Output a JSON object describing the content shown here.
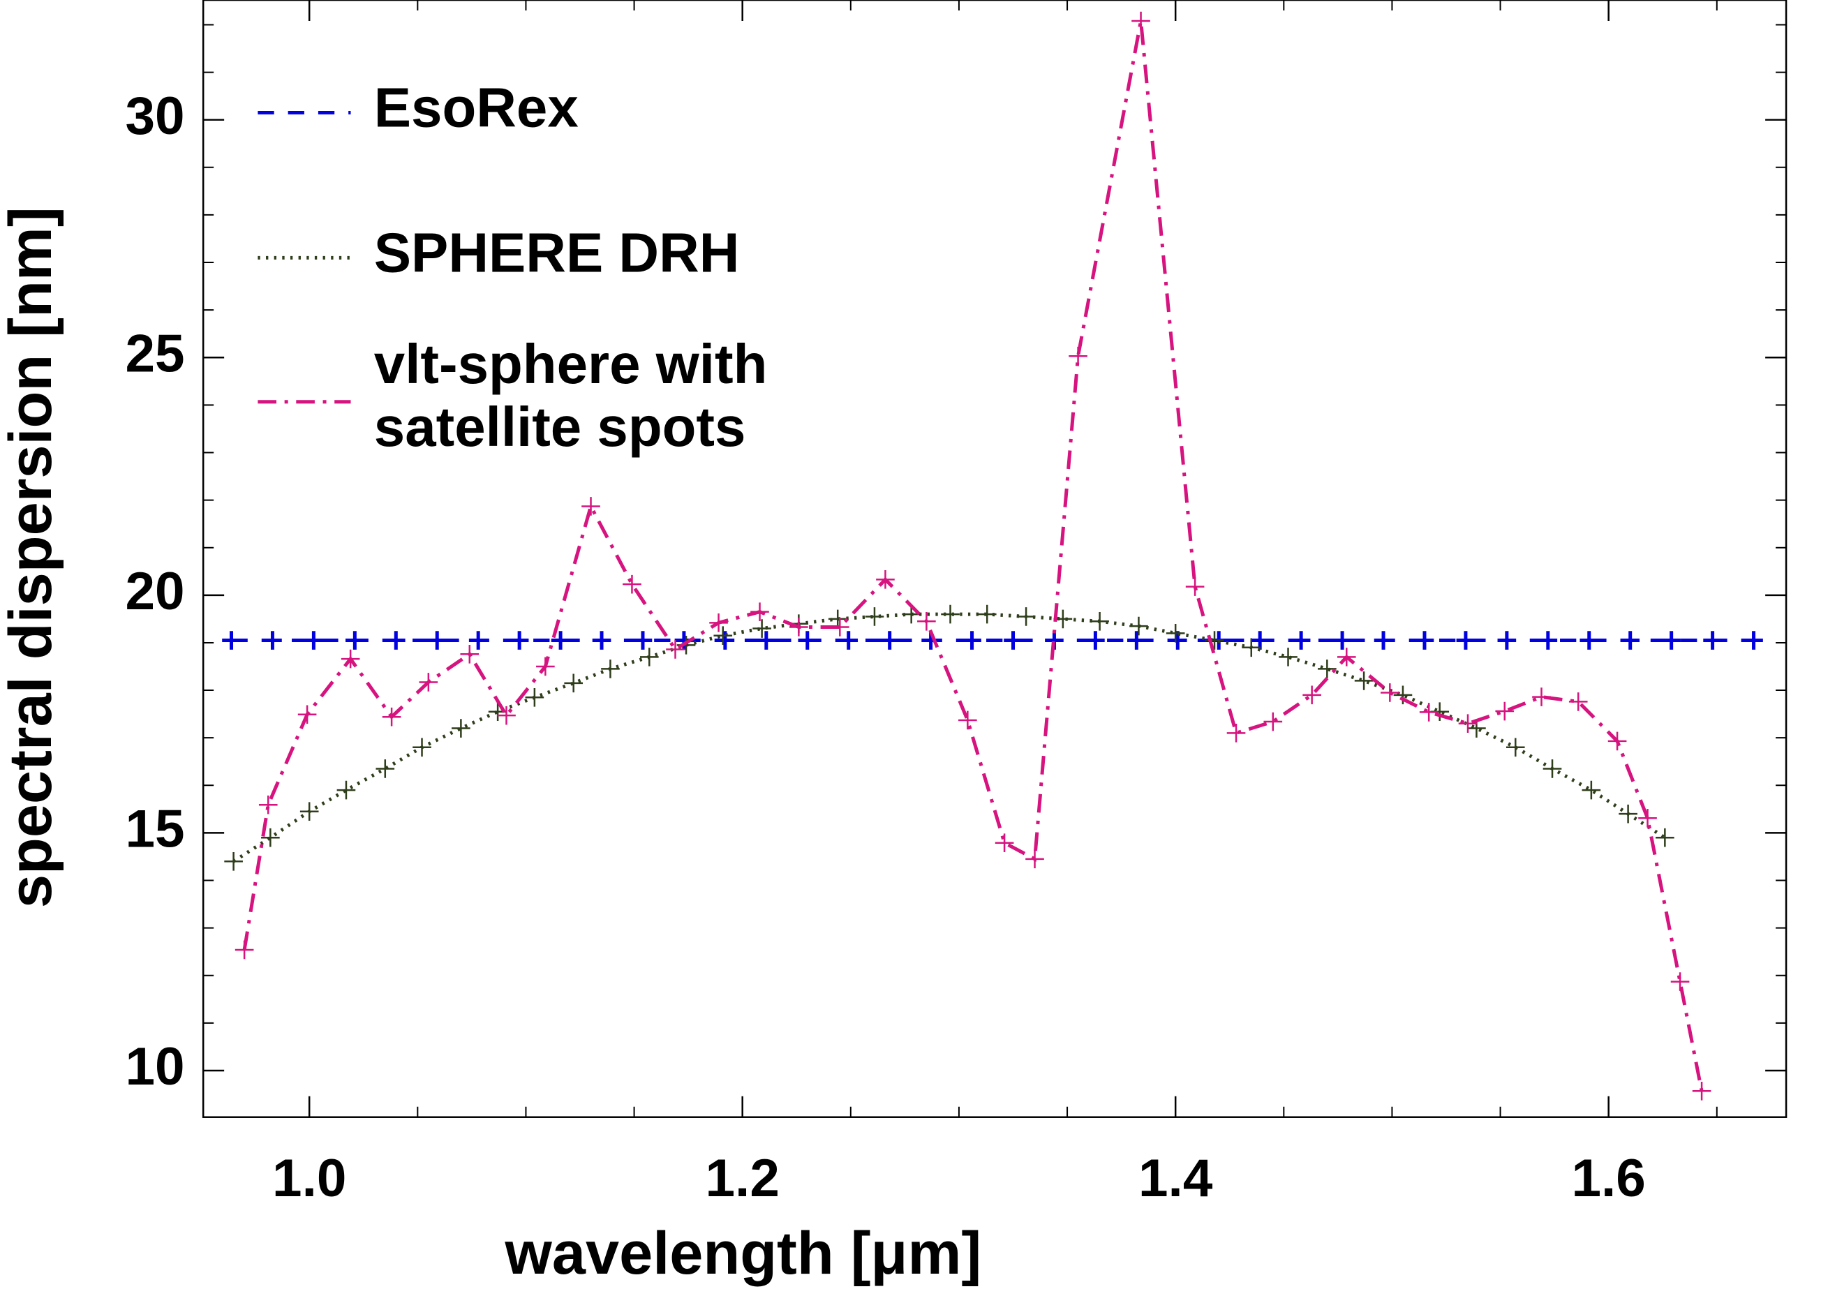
{
  "chart_data": {
    "type": "line",
    "xlabel": "wavelength [μm]",
    "ylabel": "spectral dispersion [nm]",
    "xlim": [
      0.951,
      1.682
    ],
    "ylim": [
      9.02,
      32.52
    ],
    "xticks": [
      {
        "value": 1,
        "label": "1.0"
      },
      1.2,
      1.4,
      1.6
    ],
    "yticks": [
      10,
      15,
      20,
      25,
      30
    ],
    "xminorticks": [
      1.05,
      1.1,
      1.15,
      1.25,
      1.3,
      1.35,
      1.45,
      1.5,
      1.55,
      1.65
    ],
    "yminorticks": [
      11,
      12,
      13,
      14,
      16,
      17,
      18,
      19,
      21,
      22,
      23,
      24,
      26,
      27,
      28,
      29,
      31,
      32
    ],
    "series": [
      {
        "name": "EsoRex",
        "color": "#0000e0",
        "linestyle": "dashed",
        "x": [
          0.964,
          0.983,
          1.002,
          1.021,
          1.04,
          1.059,
          1.078,
          1.097,
          1.116,
          1.135,
          1.154,
          1.173,
          1.192,
          1.211,
          1.23,
          1.249,
          1.268,
          1.287,
          1.306,
          1.325,
          1.344,
          1.363,
          1.382,
          1.401,
          1.42,
          1.439,
          1.458,
          1.477,
          1.496,
          1.515,
          1.534,
          1.553,
          1.572,
          1.591,
          1.61,
          1.629,
          1.648,
          1.667
        ],
        "values": [
          19.05,
          19.05,
          19.05,
          19.05,
          19.05,
          19.05,
          19.05,
          19.05,
          19.05,
          19.05,
          19.05,
          19.05,
          19.05,
          19.05,
          19.05,
          19.05,
          19.05,
          19.05,
          19.05,
          19.05,
          19.05,
          19.05,
          19.05,
          19.05,
          19.05,
          19.05,
          19.05,
          19.05,
          19.05,
          19.05,
          19.05,
          19.05,
          19.05,
          19.05,
          19.05,
          19.05,
          19.05,
          19.05
        ]
      },
      {
        "name": "SPHERE DRH",
        "color": "#2e3d1a",
        "linestyle": "dotted",
        "x": [
          0.965,
          0.982,
          1.0,
          1.017,
          1.035,
          1.052,
          1.07,
          1.087,
          1.104,
          1.122,
          1.139,
          1.157,
          1.174,
          1.191,
          1.209,
          1.226,
          1.244,
          1.261,
          1.278,
          1.296,
          1.313,
          1.331,
          1.348,
          1.365,
          1.383,
          1.4,
          1.418,
          1.435,
          1.452,
          1.47,
          1.487,
          1.505,
          1.522,
          1.539,
          1.557,
          1.574,
          1.592,
          1.609,
          1.626
        ],
        "values": [
          14.4,
          14.9,
          15.45,
          15.9,
          16.35,
          16.8,
          17.2,
          17.55,
          17.85,
          18.15,
          18.45,
          18.7,
          18.95,
          19.15,
          19.3,
          19.4,
          19.5,
          19.55,
          19.6,
          19.6,
          19.6,
          19.55,
          19.5,
          19.45,
          19.35,
          19.2,
          19.05,
          18.9,
          18.7,
          18.45,
          18.2,
          17.9,
          17.55,
          17.2,
          16.8,
          16.35,
          15.9,
          15.4,
          14.9
        ]
      },
      {
        "name": "vlt-sphere with satellite spots",
        "color": "#d6137f",
        "linestyle": "dashdot",
        "x": [
          0.97,
          0.981,
          0.999,
          1.019,
          1.038,
          1.055,
          1.074,
          1.091,
          1.109,
          1.13,
          1.149,
          1.169,
          1.189,
          1.208,
          1.226,
          1.245,
          1.266,
          1.285,
          1.304,
          1.321,
          1.335,
          1.355,
          1.384,
          1.409,
          1.428,
          1.445,
          1.463,
          1.479,
          1.499,
          1.517,
          1.535,
          1.552,
          1.569,
          1.586,
          1.604,
          1.618,
          1.633,
          1.643
        ],
        "values": [
          12.54,
          15.59,
          17.49,
          18.66,
          17.44,
          18.17,
          18.76,
          17.47,
          18.5,
          21.87,
          20.23,
          18.86,
          19.42,
          19.65,
          19.33,
          19.33,
          20.33,
          19.45,
          17.37,
          14.79,
          14.45,
          25.03,
          32.08,
          20.18,
          17.1,
          17.34,
          17.9,
          18.7,
          17.95,
          17.54,
          17.3,
          17.56,
          17.86,
          17.76,
          16.93,
          15.31,
          11.87,
          9.57
        ]
      }
    ]
  }
}
